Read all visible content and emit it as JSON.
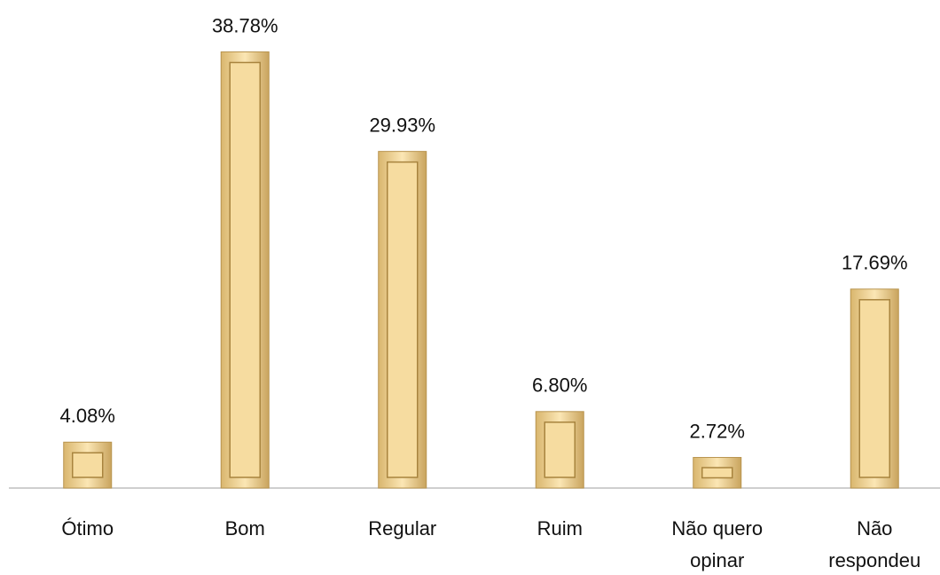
{
  "chart_data": {
    "type": "bar",
    "categories": [
      "Ótimo",
      "Bom",
      "Regular",
      "Ruim",
      "Não quero opinar",
      "Não respondeu"
    ],
    "values": [
      4.08,
      38.78,
      29.93,
      6.8,
      2.72,
      17.69
    ],
    "value_labels": [
      "4.08%",
      "38.78%",
      "29.93%",
      "6.80%",
      "2.72%",
      "17.69%"
    ],
    "color": "#f6dca0",
    "ylim": [
      0,
      40
    ]
  }
}
